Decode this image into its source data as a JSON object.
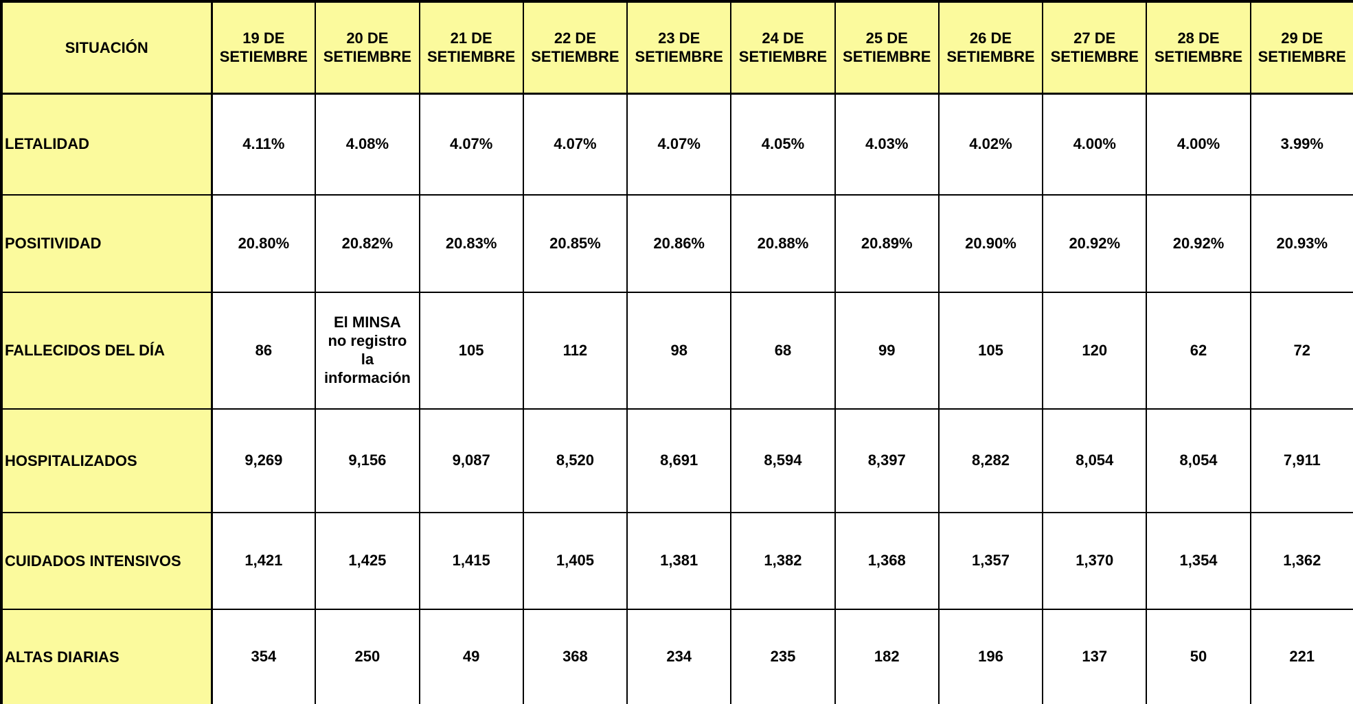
{
  "colors": {
    "header_bg": "#FBFA9D",
    "cell_bg": "#FFFFFF",
    "border": "#000000",
    "text": "#000000"
  },
  "table": {
    "corner_label": "SITUACIÓN",
    "columns": [
      "19 DE SETIEMBRE",
      "20 DE SETIEMBRE",
      "21 DE SETIEMBRE",
      "22 DE SETIEMBRE",
      "23 DE SETIEMBRE",
      "24 DE SETIEMBRE",
      "25 DE SETIEMBRE",
      "26 DE SETIEMBRE",
      "27 DE SETIEMBRE",
      "28 DE SETIEMBRE",
      "29 DE SETIEMBRE"
    ],
    "rows": [
      {
        "label": "LETALIDAD",
        "values": [
          "4.11%",
          "4.08%",
          "4.07%",
          "4.07%",
          "4.07%",
          "4.05%",
          "4.03%",
          "4.02%",
          "4.00%",
          "4.00%",
          "3.99%"
        ]
      },
      {
        "label": "POSITIVIDAD",
        "values": [
          "20.80%",
          "20.82%",
          "20.83%",
          "20.85%",
          "20.86%",
          "20.88%",
          "20.89%",
          "20.90%",
          "20.92%",
          "20.92%",
          "20.93%"
        ]
      },
      {
        "label": "FALLECIDOS DEL DÍA",
        "values": [
          "86",
          "El MINSA\nno registro\nla\ninformación",
          "105",
          "112",
          "98",
          "68",
          "99",
          "105",
          "120",
          "62",
          "72"
        ]
      },
      {
        "label": "HOSPITALIZADOS",
        "values": [
          "9,269",
          "9,156",
          "9,087",
          "8,520",
          "8,691",
          "8,594",
          "8,397",
          "8,282",
          "8,054",
          "8,054",
          "7,911"
        ]
      },
      {
        "label": "CUIDADOS INTENSIVOS",
        "values": [
          "1,421",
          "1,425",
          "1,415",
          "1,405",
          "1,381",
          "1,382",
          "1,368",
          "1,357",
          "1,370",
          "1,354",
          "1,362"
        ]
      },
      {
        "label": "ALTAS DIARIAS",
        "values": [
          "354",
          "250",
          "49",
          "368",
          "234",
          "235",
          "182",
          "196",
          "137",
          "50",
          "221"
        ]
      }
    ]
  },
  "chart_data": {
    "type": "table",
    "title": "",
    "categories": [
      "19 DE SETIEMBRE",
      "20 DE SETIEMBRE",
      "21 DE SETIEMBRE",
      "22 DE SETIEMBRE",
      "23 DE SETIEMBRE",
      "24 DE SETIEMBRE",
      "25 DE SETIEMBRE",
      "26 DE SETIEMBRE",
      "27 DE SETIEMBRE",
      "28 DE SETIEMBRE",
      "29 DE SETIEMBRE"
    ],
    "series": [
      {
        "name": "LETALIDAD (%)",
        "values": [
          4.11,
          4.08,
          4.07,
          4.07,
          4.07,
          4.05,
          4.03,
          4.02,
          4.0,
          4.0,
          3.99
        ]
      },
      {
        "name": "POSITIVIDAD (%)",
        "values": [
          20.8,
          20.82,
          20.83,
          20.85,
          20.86,
          20.88,
          20.89,
          20.9,
          20.92,
          20.92,
          20.93
        ]
      },
      {
        "name": "FALLECIDOS DEL DÍA",
        "values": [
          86,
          null,
          105,
          112,
          98,
          68,
          99,
          105,
          120,
          62,
          72
        ],
        "note": "20 DE SETIEMBRE: El MINSA no registro la información"
      },
      {
        "name": "HOSPITALIZADOS",
        "values": [
          9269,
          9156,
          9087,
          8520,
          8691,
          8594,
          8397,
          8282,
          8054,
          8054,
          7911
        ]
      },
      {
        "name": "CUIDADOS INTENSIVOS",
        "values": [
          1421,
          1425,
          1415,
          1405,
          1381,
          1382,
          1368,
          1357,
          1370,
          1354,
          1362
        ]
      },
      {
        "name": "ALTAS DIARIAS",
        "values": [
          354,
          250,
          49,
          368,
          234,
          235,
          182,
          196,
          137,
          50,
          221
        ]
      }
    ]
  }
}
